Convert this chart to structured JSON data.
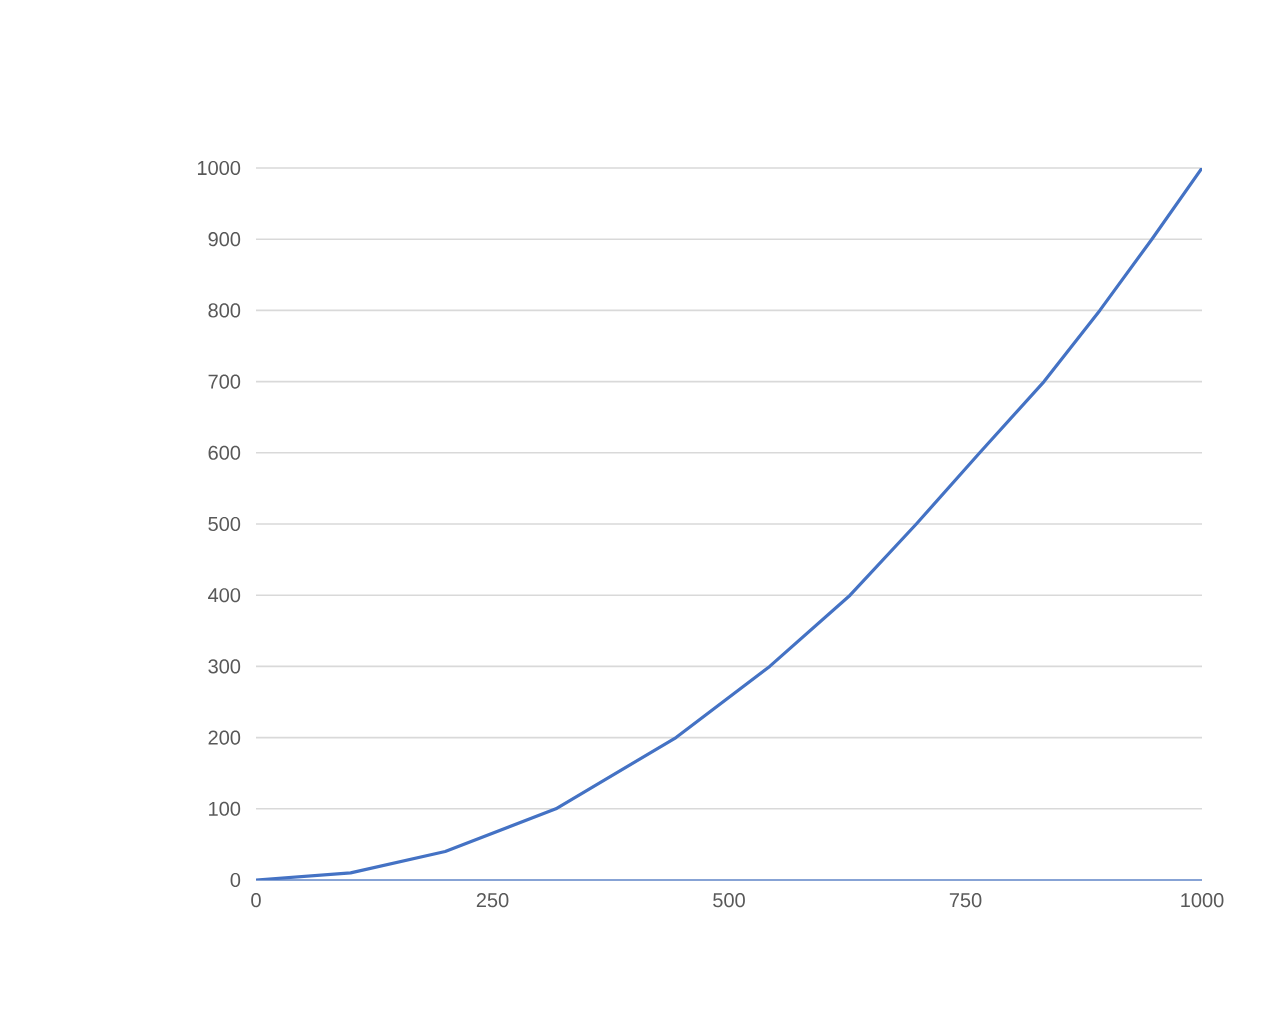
{
  "chart_data": {
    "type": "line",
    "x": [
      0,
      100,
      200,
      317,
      444,
      543,
      628,
      698,
      765,
      833,
      892,
      947,
      1000
    ],
    "values": [
      0,
      10,
      40,
      100,
      200,
      300,
      400,
      500,
      600,
      700,
      800,
      900,
      1000
    ],
    "color": "#4472c4",
    "xlim": [
      0,
      1000
    ],
    "ylim": [
      0,
      1000
    ],
    "xticks": [
      0,
      250,
      500,
      750,
      1000
    ],
    "yticks": [
      0,
      100,
      200,
      300,
      400,
      500,
      600,
      700,
      800,
      900,
      1000
    ],
    "grid": "y",
    "marker": "none",
    "line_style": "solid"
  }
}
